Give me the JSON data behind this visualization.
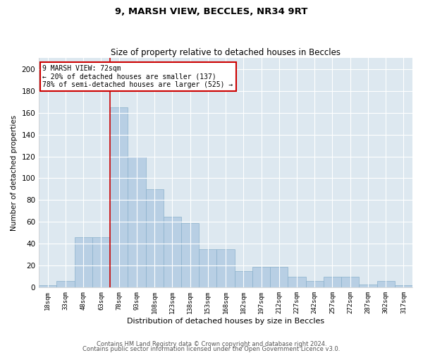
{
  "title1": "9, MARSH VIEW, BECCLES, NR34 9RT",
  "title2": "Size of property relative to detached houses in Beccles",
  "xlabel": "Distribution of detached houses by size in Beccles",
  "ylabel": "Number of detached properties",
  "categories": [
    "18sqm",
    "33sqm",
    "48sqm",
    "63sqm",
    "78sqm",
    "93sqm",
    "108sqm",
    "123sqm",
    "138sqm",
    "153sqm",
    "168sqm",
    "182sqm",
    "197sqm",
    "212sqm",
    "227sqm",
    "242sqm",
    "257sqm",
    "272sqm",
    "287sqm",
    "302sqm",
    "317sqm"
  ],
  "values": [
    2,
    6,
    46,
    46,
    165,
    120,
    90,
    65,
    59,
    35,
    35,
    15,
    19,
    19,
    10,
    6,
    10,
    10,
    3,
    6,
    2
  ],
  "bar_color": "#b8ccе3",
  "bar_edge_color": "#7aaаce",
  "bg_color": "#dde8f0",
  "grid_color": "#ffffff",
  "red_line_index": 4,
  "annotation_line1": "9 MARSH VIEW: 72sqm",
  "annotation_line2": "← 20% of detached houses are smaller (137)",
  "annotation_line3": "78% of semi-detached houses are larger (525) →",
  "annotation_box_color": "#ffffff",
  "annotation_box_edge": "#cc0000",
  "ylim": [
    0,
    210
  ],
  "yticks": [
    0,
    20,
    40,
    60,
    80,
    100,
    120,
    140,
    160,
    180,
    200
  ],
  "footer1": "Contains HM Land Registry data © Crown copyright and database right 2024.",
  "footer2": "Contains public sector information licensed under the Open Government Licence v3.0."
}
